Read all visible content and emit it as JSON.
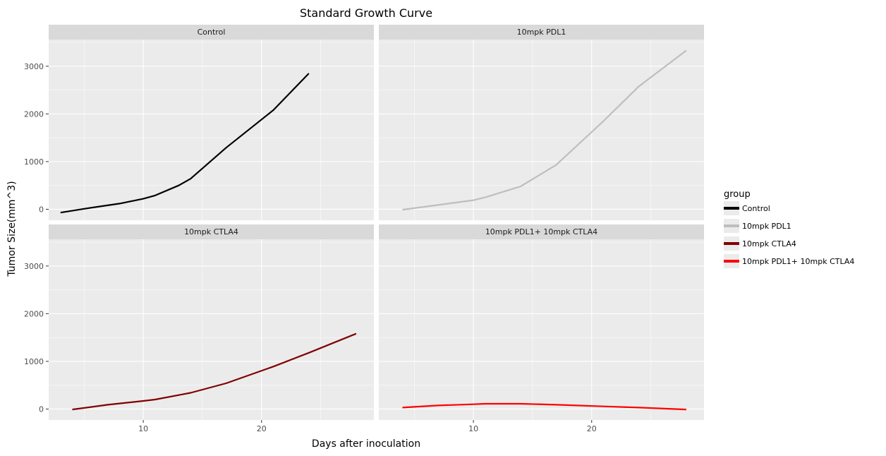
{
  "chart_data": {
    "type": "line",
    "title": "Standard Growth Curve",
    "xlabel": "Days after inoculation",
    "ylabel": "Tumor Size(mm^3)",
    "xlim": [
      2,
      29.5
    ],
    "ylim": [
      -230,
      3560
    ],
    "x_ticks": [
      10,
      20
    ],
    "y_ticks": [
      0,
      1000,
      2000,
      3000
    ],
    "grid": true,
    "legend": {
      "title": "group",
      "placement": "right",
      "entries": [
        "Control",
        "10mpk PDL1",
        "10mpk CTLA4",
        "10mpk PDL1+ 10mpk CTLA4"
      ]
    },
    "facets": [
      {
        "label": "Control",
        "series": [
          {
            "name": "Control",
            "color": "#000000",
            "x": [
              3,
              5,
              8,
              10,
              11,
              13,
              14,
              17,
              21,
              24
            ],
            "y": [
              -70,
              10,
              120,
              220,
              290,
              500,
              640,
              1290,
              2080,
              2850
            ]
          }
        ]
      },
      {
        "label": "10mpk PDL1",
        "series": [
          {
            "name": "10mpk PDL1",
            "color": "#bebebe",
            "x": [
              4,
              7,
              10,
              11,
              14,
              17,
              21,
              24,
              28
            ],
            "y": [
              -10,
              90,
              190,
              250,
              480,
              930,
              1850,
              2580,
              3330
            ]
          }
        ]
      },
      {
        "label": "10mpk CTLA4",
        "series": [
          {
            "name": "10mpk CTLA4",
            "color": "#800000",
            "x": [
              4,
              7,
              10,
              11,
              14,
              17,
              21,
              24,
              28
            ],
            "y": [
              -10,
              90,
              170,
              200,
              340,
              540,
              890,
              1180,
              1580
            ]
          }
        ]
      },
      {
        "label": "10mpk PDL1+ 10mpk CTLA4",
        "series": [
          {
            "name": "10mpk PDL1+ 10mpk CTLA4",
            "color": "#ff0000",
            "x": [
              4,
              7,
              10,
              11,
              14,
              17,
              21,
              24,
              28
            ],
            "y": [
              30,
              75,
              100,
              110,
              110,
              90,
              55,
              30,
              -10
            ]
          }
        ]
      }
    ]
  }
}
